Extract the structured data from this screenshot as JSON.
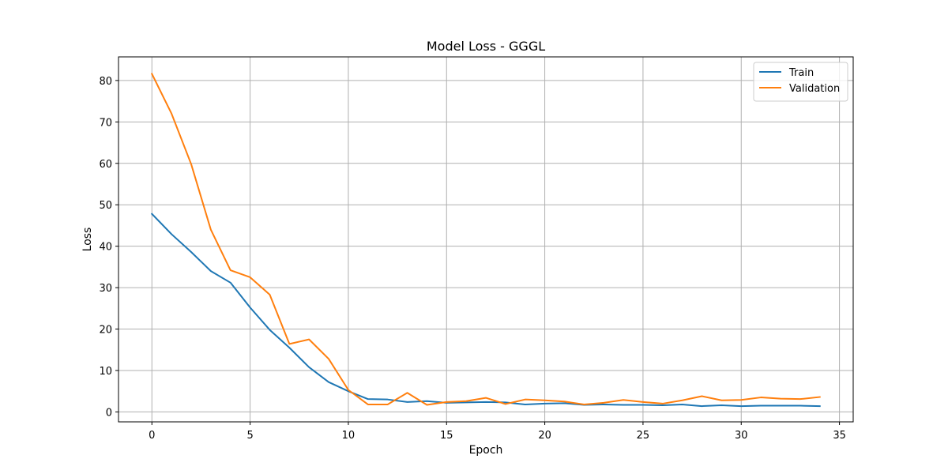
{
  "chart_data": {
    "type": "line",
    "title": "Model Loss - GGGL",
    "xlabel": "Epoch",
    "ylabel": "Loss",
    "xlim": [
      -1.7,
      35.7
    ],
    "ylim": [
      -2.4,
      85.7
    ],
    "xticks": [
      0,
      5,
      10,
      15,
      20,
      25,
      30,
      35
    ],
    "yticks": [
      0,
      10,
      20,
      30,
      40,
      50,
      60,
      70,
      80
    ],
    "grid": true,
    "legend_position": "top-right",
    "x": [
      0,
      1,
      2,
      3,
      4,
      5,
      6,
      7,
      8,
      9,
      10,
      11,
      12,
      13,
      14,
      15,
      16,
      17,
      18,
      19,
      20,
      21,
      22,
      23,
      24,
      25,
      26,
      27,
      28,
      29,
      30,
      31,
      32,
      33,
      34
    ],
    "series": [
      {
        "name": "Train",
        "color": "#1f77b4",
        "values": [
          47.8,
          42.9,
          38.6,
          34.0,
          31.2,
          25.2,
          19.8,
          15.5,
          10.8,
          7.2,
          5.0,
          3.1,
          3.0,
          2.4,
          2.6,
          2.2,
          2.3,
          2.4,
          2.3,
          1.8,
          2.0,
          2.1,
          1.7,
          1.8,
          1.7,
          1.7,
          1.6,
          1.8,
          1.4,
          1.6,
          1.4,
          1.5,
          1.5,
          1.5,
          1.4
        ]
      },
      {
        "name": "Validation",
        "color": "#ff7f0e",
        "values": [
          81.6,
          72.0,
          59.8,
          44.0,
          34.2,
          32.5,
          28.3,
          16.4,
          17.5,
          12.8,
          5.3,
          1.8,
          1.8,
          4.6,
          1.7,
          2.4,
          2.6,
          3.4,
          1.9,
          3.0,
          2.8,
          2.5,
          1.8,
          2.2,
          2.9,
          2.4,
          2.0,
          2.8,
          3.8,
          2.8,
          2.9,
          3.5,
          3.2,
          3.1,
          3.6
        ]
      }
    ]
  }
}
